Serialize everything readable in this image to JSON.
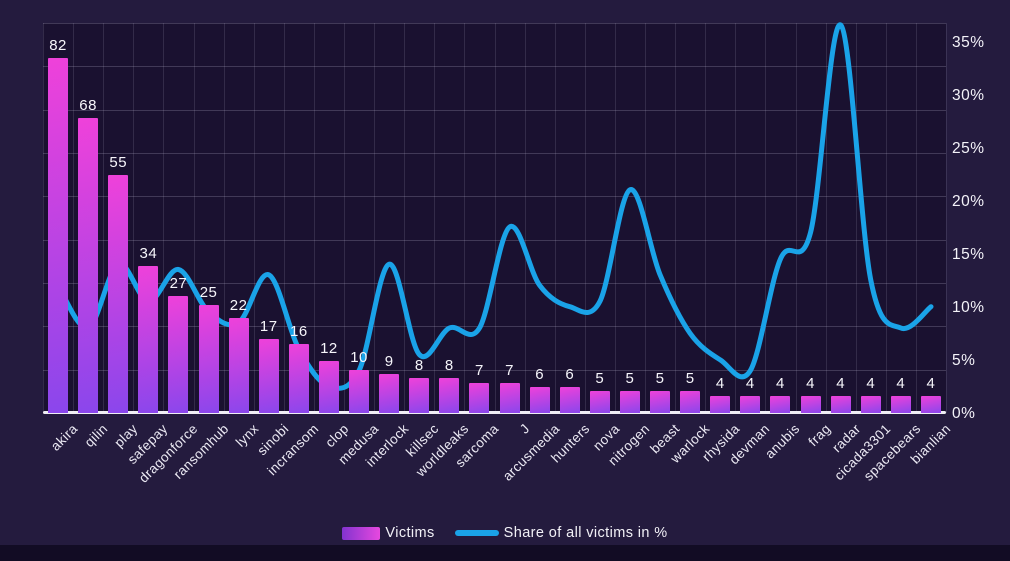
{
  "chart_data": {
    "type": "bar+line combo",
    "categories": [
      "akira",
      "qilin",
      "play",
      "safepay",
      "dragonforce",
      "ransomhub",
      "lynx",
      "sinobi",
      "incransom",
      "clop",
      "medusa",
      "interlock",
      "killsec",
      "worldleaks",
      "sarcoma",
      "J",
      "arcusmedia",
      "hunters",
      "nova",
      "nitrogen",
      "beast",
      "warlock",
      "rhysida",
      "devman",
      "anubis",
      "frag",
      "radar",
      "cicada3301",
      "spacebears",
      "bianlian"
    ],
    "series": [
      {
        "name": "Victims",
        "type": "bar",
        "values": [
          82,
          68,
          55,
          34,
          27,
          25,
          22,
          17,
          16,
          12,
          10,
          9,
          8,
          8,
          7,
          7,
          6,
          6,
          5,
          5,
          5,
          5,
          4,
          4,
          4,
          4,
          4,
          4,
          4,
          4
        ]
      },
      {
        "name": "Share of all victims in %",
        "type": "line",
        "values": [
          12,
          8,
          14,
          10.5,
          13.5,
          9.5,
          8.5,
          13,
          6,
          2.5,
          4,
          14,
          5.5,
          8,
          8,
          17.5,
          12,
          10,
          10.5,
          21,
          13,
          7.5,
          5,
          4,
          14.5,
          17,
          36.5,
          12.5,
          8,
          10
        ]
      }
    ],
    "legend": [
      "Victims",
      "Share of all victims in %"
    ],
    "right_axis": {
      "unit": "%",
      "tick_labels": [
        "0%",
        "5%",
        "10%",
        "15%",
        "20%",
        "25%",
        "30%",
        "35%"
      ],
      "min": 0,
      "max": 35
    },
    "left_axis": {
      "labels_visible": false,
      "grid_step_victims": 10,
      "max": 90
    },
    "grid": true,
    "legend_position": "bottom-center"
  },
  "colors": {
    "background": "#241b3e",
    "plot_background": "#1a1130",
    "bar_gradient_top": "#ef41da",
    "bar_gradient_bottom": "#8a46ec",
    "legend_bar_gradient_left": "#8233cf",
    "legend_bar_gradient_right": "#e748df",
    "line": "#1aa3e8",
    "axis_line": "#efeef5",
    "text": "#f4f3f9"
  }
}
